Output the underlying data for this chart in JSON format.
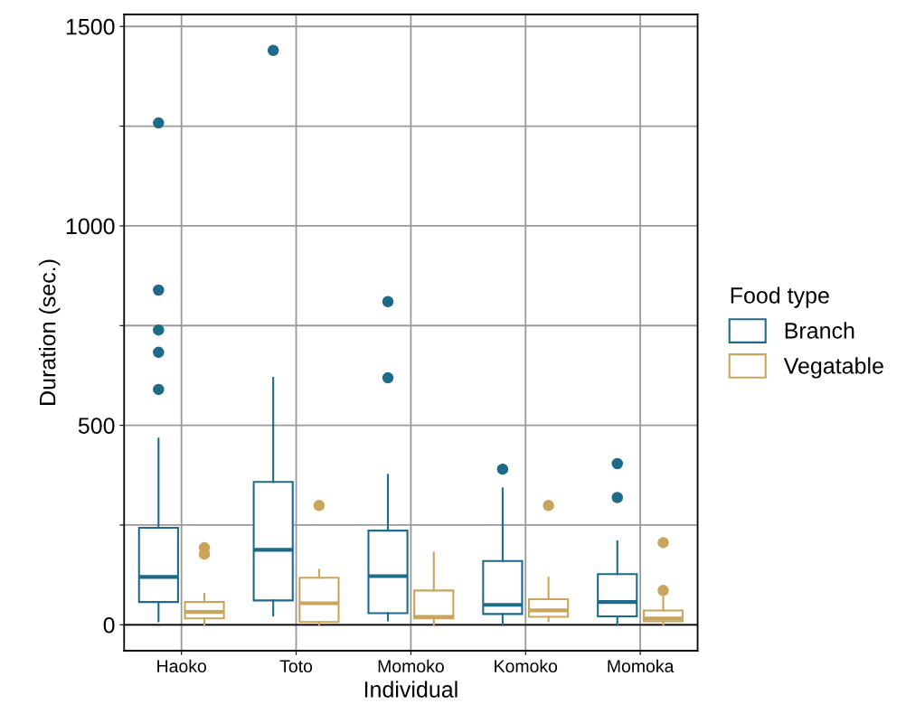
{
  "chart_data": {
    "type": "box",
    "xlabel": "Individual",
    "ylabel": "Duration (sec.)",
    "legend_title": "Food type",
    "categories": [
      "Haoko",
      "Toto",
      "Momoko",
      "Komoko",
      "Momoka"
    ],
    "ylim": [
      -65,
      1530
    ],
    "yticks": [
      0,
      {
        "value": 250,
        "label": null
      },
      500,
      {
        "value": 750,
        "label": null
      },
      1000,
      {
        "value": 1250,
        "label": null
      },
      1500
    ],
    "grid": true,
    "legend": "right",
    "ref_lines": [
      {
        "axis": "y",
        "value": 0,
        "label": null,
        "color": "#000000"
      }
    ],
    "series": [
      {
        "name": "Branch",
        "color": "#1d6a8a",
        "boxes": [
          {
            "low": 9,
            "q1": 57,
            "median": 120,
            "q3": 243,
            "high": 467,
            "outliers": [
              590,
              683,
              739,
              839,
              1258
            ]
          },
          {
            "low": 23,
            "q1": 61,
            "median": 188,
            "q3": 358,
            "high": 619,
            "outliers": [
              1440
            ]
          },
          {
            "low": 11,
            "q1": 29,
            "median": 122,
            "q3": 236,
            "high": 376,
            "outliers": [
              619,
              810
            ]
          },
          {
            "low": 0,
            "q1": 27,
            "median": 50,
            "q3": 160,
            "high": 342,
            "outliers": [
              390
            ]
          },
          {
            "low": 0,
            "q1": 21,
            "median": 57,
            "q3": 127,
            "high": 209,
            "outliers": [
              319,
              404
            ]
          }
        ]
      },
      {
        "name": "Vegatable",
        "color": "#c9a55c",
        "boxes": [
          {
            "low": 0,
            "q1": 16,
            "median": 32,
            "q3": 57,
            "high": 77,
            "outliers": [
              177,
              193
            ]
          },
          {
            "low": 0,
            "q1": 7,
            "median": 54,
            "q3": 118,
            "high": 138,
            "outliers": [
              299
            ]
          },
          {
            "low": 0,
            "q1": 16,
            "median": 20,
            "q3": 86,
            "high": 181
          },
          {
            "low": 9,
            "q1": 20,
            "median": 36,
            "q3": 64,
            "high": 118,
            "outliers": [
              299
            ]
          },
          {
            "low": 0,
            "q1": 9,
            "median": 16,
            "q3": 36,
            "high": 70,
            "outliers": [
              86,
              206
            ]
          }
        ]
      }
    ]
  }
}
